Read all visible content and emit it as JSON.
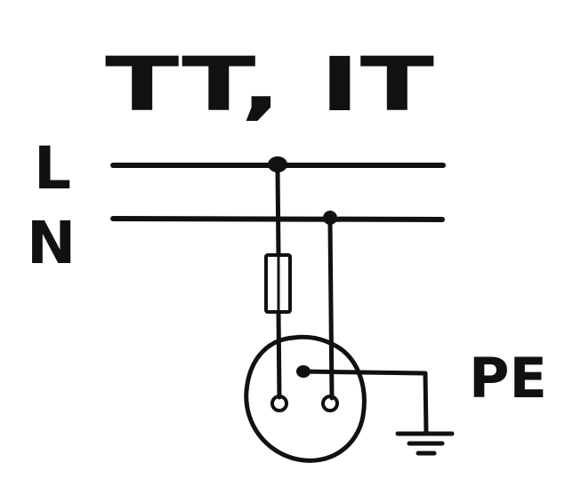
{
  "title": "TT, IT",
  "labels": {
    "line": "L",
    "neutral": "N",
    "protective_earth": "PE"
  }
}
